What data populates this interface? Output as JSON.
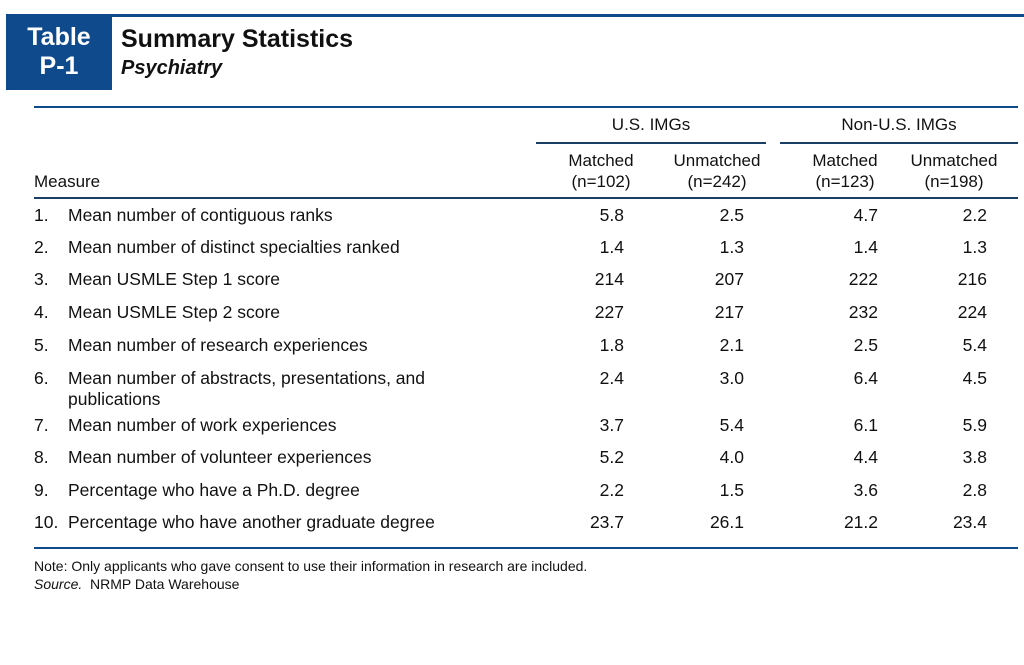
{
  "badge": {
    "line1": "Table",
    "line2": "P-1"
  },
  "title": "Summary Statistics",
  "subtitle": "Psychiatry",
  "groups": [
    {
      "label": "U.S. IMGs"
    },
    {
      "label": "Non-U.S. IMGs"
    }
  ],
  "measure_header": "Measure",
  "columns": [
    {
      "name": "Matched",
      "n": "(n=102)"
    },
    {
      "name": "Unmatched",
      "n": "(n=242)"
    },
    {
      "name": "Matched",
      "n": "(n=123)"
    },
    {
      "name": "Unmatched",
      "n": "(n=198)"
    }
  ],
  "rows": [
    {
      "num": "1.",
      "label": "Mean number of contiguous ranks",
      "values": [
        "5.8",
        "2.5",
        "4.7",
        "2.2"
      ]
    },
    {
      "num": "2.",
      "label": "Mean number of distinct specialties ranked",
      "values": [
        "1.4",
        "1.3",
        "1.4",
        "1.3"
      ]
    },
    {
      "num": "3.",
      "label": "Mean USMLE Step 1 score",
      "values": [
        "214",
        "207",
        "222",
        "216"
      ]
    },
    {
      "num": "4.",
      "label": "Mean USMLE Step 2 score",
      "values": [
        "227",
        "217",
        "232",
        "224"
      ]
    },
    {
      "num": "5.",
      "label": "Mean number of research experiences",
      "values": [
        "1.8",
        "2.1",
        "2.5",
        "5.4"
      ]
    },
    {
      "num": "6.",
      "label": "Mean number of abstracts, presentations, and publications",
      "values": [
        "2.4",
        "3.0",
        "6.4",
        "4.5"
      ]
    },
    {
      "num": "7.",
      "label": "Mean number of work experiences",
      "values": [
        "3.7",
        "5.4",
        "6.1",
        "5.9"
      ]
    },
    {
      "num": "8.",
      "label": "Mean number of volunteer experiences",
      "values": [
        "5.2",
        "4.0",
        "4.4",
        "3.8"
      ]
    },
    {
      "num": "9.",
      "label": "Percentage who have a Ph.D. degree",
      "values": [
        "2.2",
        "1.5",
        "3.6",
        "2.8"
      ]
    },
    {
      "num": "10.",
      "label": "Percentage who have another graduate degree",
      "values": [
        "23.7",
        "26.1",
        "21.2",
        "23.4"
      ]
    }
  ],
  "note": "Note: Only applicants who gave consent to use their information in research are included.",
  "source": {
    "label": "Source.",
    "text": "NRMP Data Warehouse"
  },
  "colors": {
    "accent": "#0e4a8c"
  }
}
